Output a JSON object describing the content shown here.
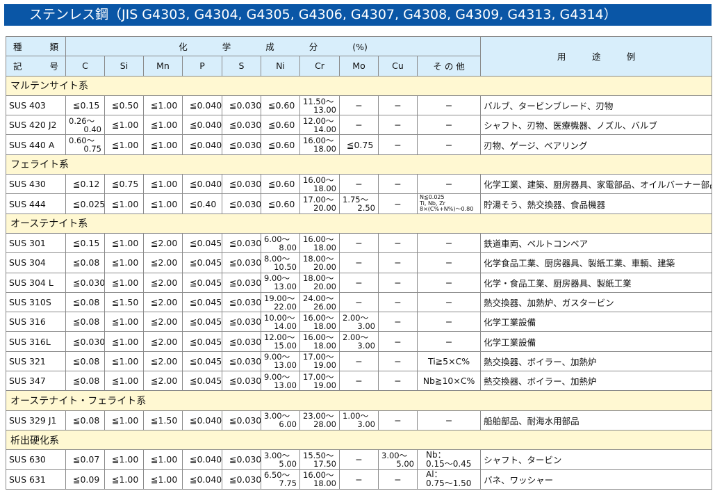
{
  "title": "ステンレス鋼（JIS G4303, G4304, G4305, G4306, G4307, G4308, G4309, G4313, G4314）",
  "header": {
    "type_top": [
      "種",
      "類"
    ],
    "type_bottom": [
      "記",
      "号"
    ],
    "chem_label": "化　　　　学　　　　成　　　　分　　　　(%)",
    "columns": [
      "C",
      "Si",
      "Mn",
      "P",
      "S",
      "Ni",
      "Cr",
      "Mo",
      "Cu",
      "そ の 他"
    ],
    "use_label": "用　　　途　　　例"
  },
  "sections": [
    {
      "label": "マルテンサイト系",
      "rows": [
        {
          "name": "SUS 403",
          "cells": [
            "≦0.15",
            "≦0.50",
            "≦1.00",
            "≦0.040",
            "≦0.030",
            "≦0.60",
            [
              "11.50〜",
              "13.00"
            ],
            "−",
            "−",
            "−"
          ],
          "use": "バルブ、タービンブレード、刃物"
        },
        {
          "name": "SUS 420 J2",
          "cells": [
            [
              "0.26〜",
              "0.40"
            ],
            "≦1.00",
            "≦1.00",
            "≦0.040",
            "≦0.030",
            "≦0.60",
            [
              "12.00〜",
              "14.00"
            ],
            "−",
            "−",
            "−"
          ],
          "use": "シャフト、刃物、医療機器、ノズル、バルブ"
        },
        {
          "name": "SUS 440 A",
          "cells": [
            [
              "0.60〜",
              "0.75"
            ],
            "≦1.00",
            "≦1.00",
            "≦0.040",
            "≦0.030",
            "≦0.60",
            [
              "16.00〜",
              "18.00"
            ],
            "≦0.75",
            "−",
            "−"
          ],
          "use": "刃物、ゲージ、ベアリング"
        }
      ]
    },
    {
      "label": "フェライト系",
      "rows": [
        {
          "name": "SUS 430",
          "cells": [
            "≦0.12",
            "≦0.75",
            "≦1.00",
            "≦0.040",
            "≦0.030",
            "≦0.60",
            [
              "16.00〜",
              "18.00"
            ],
            "−",
            "−",
            "−"
          ],
          "use": "化学工業、建築、厨房器具、家電部品、オイルバーナー部品"
        },
        {
          "name": "SUS 444",
          "cells": [
            "≦0.025",
            "≦1.00",
            "≦1.00",
            "≦0.40",
            "≦0.030",
            "≦0.60",
            [
              "17.00〜",
              "20.00"
            ],
            [
              "1.75〜",
              "2.50"
            ],
            "−",
            {
              "tiny": [
                "N≦0.025",
                "Ti, Nb, Zr",
                "8×(C%+N%)〜0.80"
              ]
            }
          ],
          "use": "貯湯そう、熱交換器、食品機器"
        }
      ]
    },
    {
      "label": "オーステナイト系",
      "rows": [
        {
          "name": "SUS 301",
          "cells": [
            "≦0.15",
            "≦1.00",
            "≦2.00",
            "≦0.045",
            "≦0.030",
            [
              "6.00〜",
              "8.00"
            ],
            [
              "16.00〜",
              "18.00"
            ],
            "−",
            "−",
            "−"
          ],
          "use": "鉄道車両、ベルトコンベア"
        },
        {
          "name": "SUS 304",
          "cells": [
            "≦0.08",
            "≦1.00",
            "≦2.00",
            "≦0.045",
            "≦0.030",
            [
              "8.00〜",
              "10.50"
            ],
            [
              "18.00〜",
              "20.00"
            ],
            "−",
            "−",
            "−"
          ],
          "use": "化学食品工業、厨房器具、製紙工業、車輌、建築"
        },
        {
          "name": "SUS 304 L",
          "cells": [
            "≦0.030",
            "≦1.00",
            "≦2.00",
            "≦0.045",
            "≦0.030",
            [
              "9.00〜",
              "13.00"
            ],
            [
              "18.00〜",
              "20.00"
            ],
            "−",
            "−",
            "−"
          ],
          "use": "化学・食品工業、厨房器具、製紙工業"
        },
        {
          "name": "SUS 310S",
          "cells": [
            "≦0.08",
            "≦1.50",
            "≦2.00",
            "≦0.045",
            "≦0.030",
            [
              "19.00〜",
              "22.00"
            ],
            [
              "24.00〜",
              "26.00"
            ],
            "−",
            "−",
            "−"
          ],
          "use": "熱交換器、加熱炉、ガスタービン"
        },
        {
          "name": "SUS 316",
          "cells": [
            "≦0.08",
            "≦1.00",
            "≦2.00",
            "≦0.045",
            "≦0.030",
            [
              "10.00〜",
              "14.00"
            ],
            [
              "16.00〜",
              "18.00"
            ],
            [
              "2.00〜",
              "3.00"
            ],
            "−",
            "−"
          ],
          "use": "化学工業設備"
        },
        {
          "name": "SUS 316L",
          "cells": [
            "≦0.030",
            "≦1.00",
            "≦2.00",
            "≦0.045",
            "≦0.030",
            [
              "12.00〜",
              "15.00"
            ],
            [
              "16.00〜",
              "18.00"
            ],
            [
              "2.00〜",
              "3.00"
            ],
            "−",
            "−"
          ],
          "use": "化学工業設備"
        },
        {
          "name": "SUS 321",
          "cells": [
            "≦0.08",
            "≦1.00",
            "≦2.00",
            "≦0.045",
            "≦0.030",
            [
              "9.00〜",
              "13.00"
            ],
            [
              "17.00〜",
              "19.00"
            ],
            "−",
            "−",
            "Ti≧5×C%"
          ],
          "use": "熱交換器、ボイラー、加熱炉"
        },
        {
          "name": "SUS 347",
          "cells": [
            "≦0.08",
            "≦1.00",
            "≦2.00",
            "≦0.045",
            "≦0.030",
            [
              "9.00〜",
              "13.00"
            ],
            [
              "17.00〜",
              "19.00"
            ],
            "−",
            "−",
            "Nb≧10×C%"
          ],
          "use": "熱交換器、ボイラー、加熱炉"
        }
      ]
    },
    {
      "label": "オーステナイト・フェライト系",
      "rows": [
        {
          "name": "SUS 329 J1",
          "cells": [
            "≦0.08",
            "≦1.00",
            "≦1.50",
            "≦0.040",
            "≦0.030",
            [
              "3.00〜",
              "6.00"
            ],
            [
              "23.00〜",
              "28.00"
            ],
            [
              "1.00〜",
              "3.00"
            ],
            "−",
            "−"
          ],
          "use": "船舶部品、耐海水用部品"
        }
      ]
    },
    {
      "label": "析出硬化系",
      "rows": [
        {
          "name": "SUS 630",
          "cells": [
            "≦0.07",
            "≦1.00",
            "≦1.00",
            "≦0.040",
            "≦0.030",
            [
              "3.00〜",
              "5.00"
            ],
            [
              "15.50〜",
              "17.50"
            ],
            "−",
            [
              "3.00〜",
              "5.00"
            ],
            {
              "pair": [
                "Nb：",
                "0.15〜0.45"
              ]
            }
          ],
          "use": "シャフト、タービン"
        },
        {
          "name": "SUS 631",
          "cells": [
            "≦0.09",
            "≦1.00",
            "≦1.00",
            "≦0.040",
            "≦0.030",
            [
              "6.50〜",
              "7.75"
            ],
            [
              "16.00〜",
              "18.00"
            ],
            "−",
            "−",
            {
              "pair": [
                "Al：",
                "0.75〜1.50"
              ]
            }
          ],
          "use": "バネ、ワッシャー"
        }
      ]
    }
  ],
  "colors": {
    "title_bg": "#0a56a6",
    "header_bg": "#d8eefb",
    "section_bg": "#fff8d2"
  }
}
